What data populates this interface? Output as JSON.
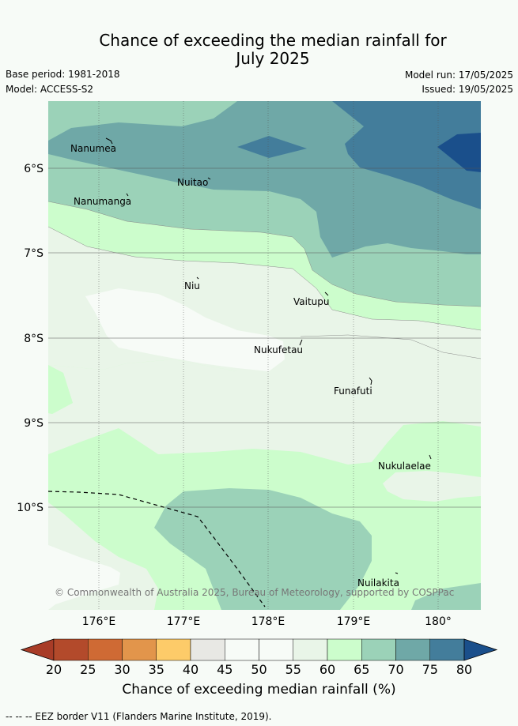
{
  "title_line1": "Chance of exceeding the median rainfall for",
  "title_line2": "July 2025",
  "base_period": "Base period: 1981-2018",
  "model": "Model: ACCESS-S2",
  "model_run": "Model run: 17/05/2025",
  "issued": "Issued: 19/05/2025",
  "lat_labels": [
    "6°S",
    "7°S",
    "8°S",
    "9°S",
    "10°S"
  ],
  "lon_labels": [
    "176°E",
    "177°E",
    "178°E",
    "179°E",
    "180°"
  ],
  "places": [
    "Nanumea",
    "Nuitao",
    "Nanumanga",
    "Niu",
    "Vaitupu",
    "Nukufetau",
    "Funafuti",
    "Nukulaelae",
    "Nuilakita"
  ],
  "copyright": "© Commonwealth of Australia 2025, Bureau of Meteorology, supported by COSPPac",
  "colorbar": {
    "ticks": [
      "20",
      "25",
      "30",
      "35",
      "40",
      "45",
      "50",
      "55",
      "60",
      "65",
      "70",
      "75",
      "80"
    ],
    "colors": [
      "#b34a2b",
      "#cf6a34",
      "#e2954b",
      "#fdcb69",
      "#e8e8e4",
      "#f7fbf7",
      "#f7fbf7",
      "#e9f5e8",
      "#ccfdcc",
      "#9bd2b8",
      "#6fa8a7",
      "#437d9b",
      "#1a4f8b"
    ],
    "under_color": "#a83c27",
    "label": "Chance of exceeding median rainfall (%)"
  },
  "legend_footer": "--  --  -- EEZ border V11 (Flanders Marine Institute, 2019)."
}
